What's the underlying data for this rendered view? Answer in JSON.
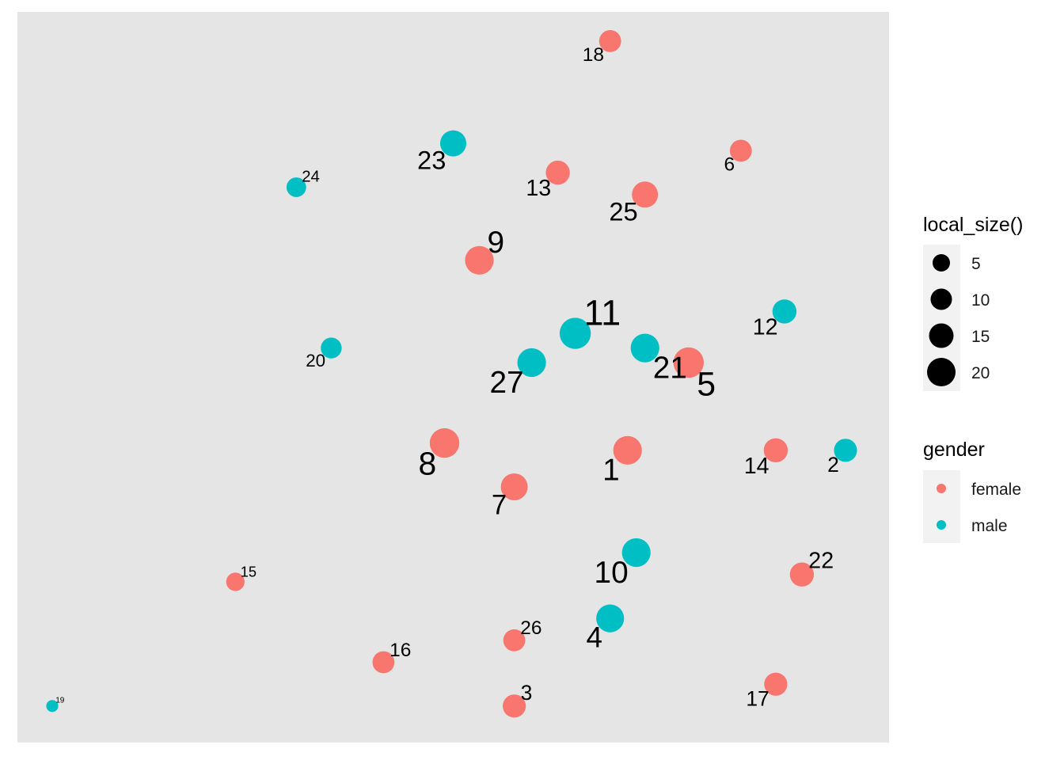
{
  "chart_data": {
    "type": "scatter",
    "title": "",
    "xlabel": "",
    "ylabel": "",
    "grid": false,
    "axes_visible": false,
    "legend_position": "right",
    "colors": {
      "female": "#F8766D",
      "male": "#00BFC4",
      "panel": "#E5E5E5"
    },
    "size_legend": {
      "title": "local_size()",
      "values": [
        5,
        10,
        15,
        20
      ]
    },
    "color_legend": {
      "title": "gender",
      "entries": [
        "female",
        "male"
      ]
    },
    "points": [
      {
        "id": "1",
        "x": 0.7,
        "y": 0.4,
        "size": 17,
        "gender": "female"
      },
      {
        "id": "2",
        "x": 0.95,
        "y": 0.4,
        "size": 11,
        "gender": "male"
      },
      {
        "id": "3",
        "x": 0.57,
        "y": 0.05,
        "size": 11,
        "gender": "female"
      },
      {
        "id": "4",
        "x": 0.68,
        "y": 0.17,
        "size": 16,
        "gender": "male"
      },
      {
        "id": "5",
        "x": 0.77,
        "y": 0.52,
        "size": 19,
        "gender": "female"
      },
      {
        "id": "6",
        "x": 0.83,
        "y": 0.81,
        "size": 10,
        "gender": "female"
      },
      {
        "id": "7",
        "x": 0.57,
        "y": 0.35,
        "size": 15,
        "gender": "female"
      },
      {
        "id": "8",
        "x": 0.49,
        "y": 0.41,
        "size": 18,
        "gender": "female"
      },
      {
        "id": "9",
        "x": 0.53,
        "y": 0.66,
        "size": 17,
        "gender": "female"
      },
      {
        "id": "10",
        "x": 0.71,
        "y": 0.26,
        "size": 17,
        "gender": "male"
      },
      {
        "id": "11",
        "x": 0.64,
        "y": 0.56,
        "size": 20,
        "gender": "male"
      },
      {
        "id": "12",
        "x": 0.88,
        "y": 0.59,
        "size": 12,
        "gender": "male"
      },
      {
        "id": "13",
        "x": 0.62,
        "y": 0.78,
        "size": 12,
        "gender": "female"
      },
      {
        "id": "14",
        "x": 0.87,
        "y": 0.4,
        "size": 12,
        "gender": "female"
      },
      {
        "id": "15",
        "x": 0.25,
        "y": 0.22,
        "size": 7,
        "gender": "female"
      },
      {
        "id": "16",
        "x": 0.42,
        "y": 0.11,
        "size": 10,
        "gender": "female"
      },
      {
        "id": "17",
        "x": 0.87,
        "y": 0.08,
        "size": 11,
        "gender": "female"
      },
      {
        "id": "18",
        "x": 0.68,
        "y": 0.96,
        "size": 10,
        "gender": "female"
      },
      {
        "id": "19",
        "x": 0.04,
        "y": 0.05,
        "size": 3,
        "gender": "male"
      },
      {
        "id": "20",
        "x": 0.36,
        "y": 0.54,
        "size": 9,
        "gender": "male"
      },
      {
        "id": "21",
        "x": 0.72,
        "y": 0.54,
        "size": 17,
        "gender": "male"
      },
      {
        "id": "22",
        "x": 0.9,
        "y": 0.23,
        "size": 12,
        "gender": "female"
      },
      {
        "id": "23",
        "x": 0.5,
        "y": 0.82,
        "size": 14,
        "gender": "male"
      },
      {
        "id": "24",
        "x": 0.32,
        "y": 0.76,
        "size": 8,
        "gender": "male"
      },
      {
        "id": "25",
        "x": 0.72,
        "y": 0.75,
        "size": 14,
        "gender": "female"
      },
      {
        "id": "26",
        "x": 0.57,
        "y": 0.14,
        "size": 10,
        "gender": "female"
      },
      {
        "id": "27",
        "x": 0.59,
        "y": 0.52,
        "size": 17,
        "gender": "male"
      }
    ]
  }
}
